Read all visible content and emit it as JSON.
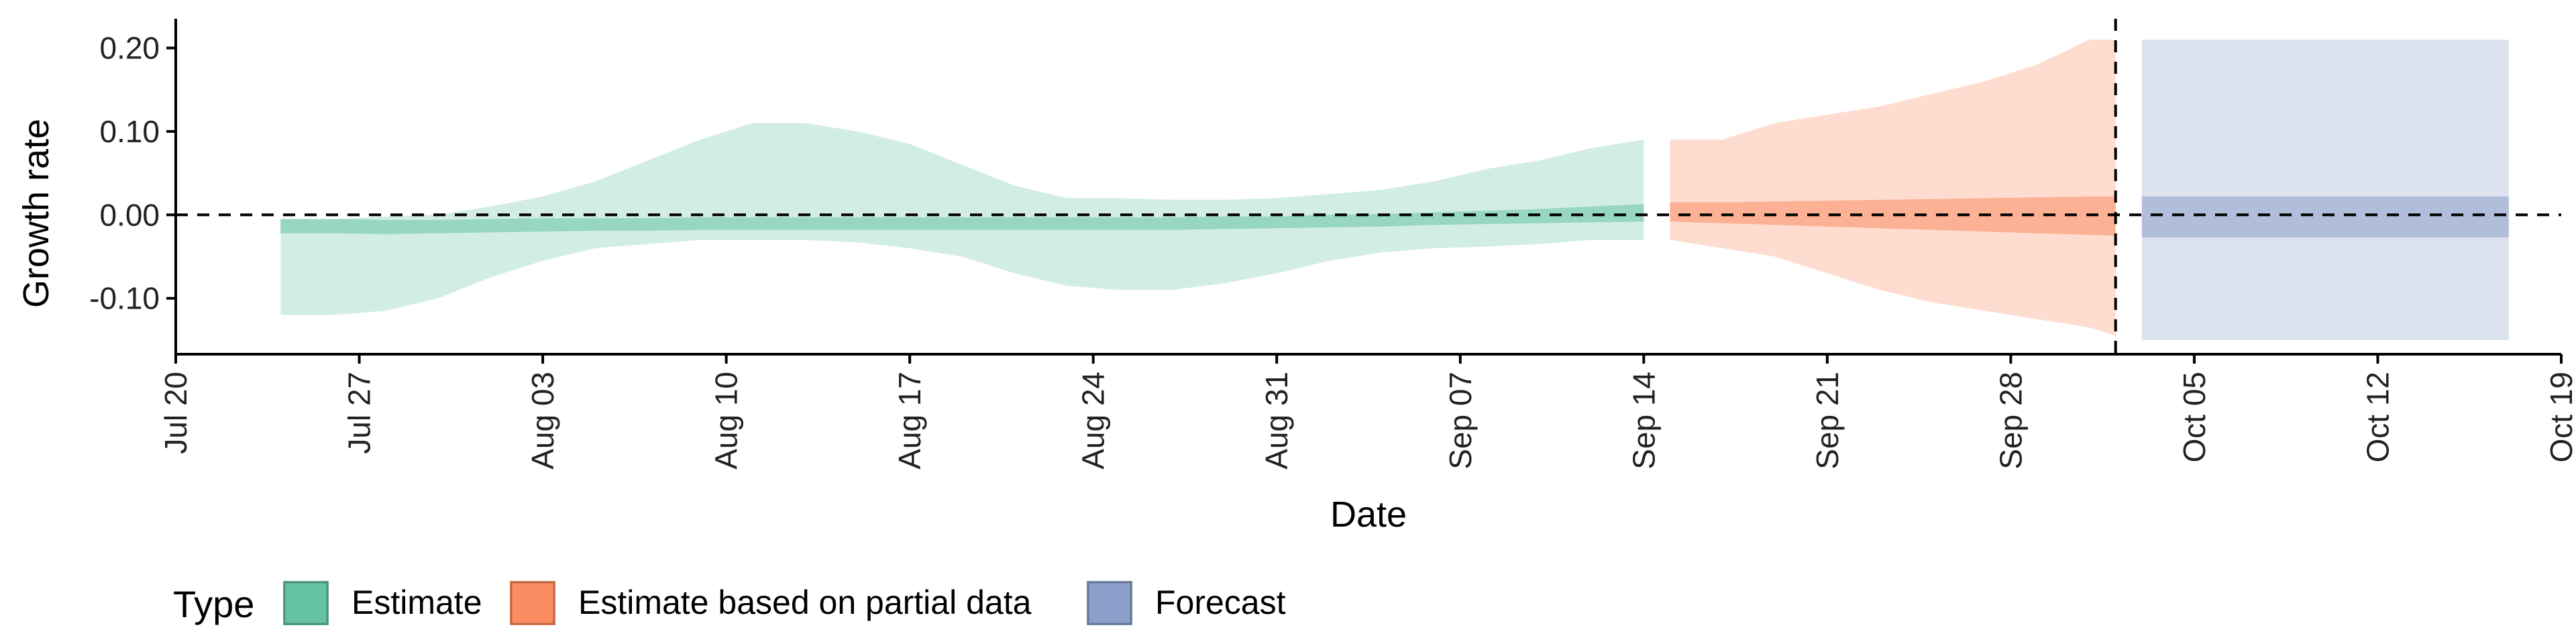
{
  "chart_data": {
    "type": "area",
    "xlabel": "Date",
    "ylabel": "Growth rate",
    "x_tick_labels": [
      "Jul 20",
      "Jul 27",
      "Aug 03",
      "Aug 10",
      "Aug 17",
      "Aug 24",
      "Aug 31",
      "Sep 07",
      "Sep 14",
      "Sep 21",
      "Sep 28",
      "Oct 05",
      "Oct 12",
      "Oct 19"
    ],
    "x_ticks": [
      "2020-07-20",
      "2020-07-27",
      "2020-08-03",
      "2020-08-10",
      "2020-08-17",
      "2020-08-24",
      "2020-08-31",
      "2020-09-07",
      "2020-09-14",
      "2020-09-21",
      "2020-09-28",
      "2020-10-05",
      "2020-10-12",
      "2020-10-19"
    ],
    "xlim": [
      "2020-07-20",
      "2020-10-19"
    ],
    "y_ticks": [
      -0.1,
      0.0,
      0.1,
      0.2
    ],
    "y_tick_labels": [
      "-0.10",
      "0.00",
      "0.10",
      "0.20"
    ],
    "ylim": [
      -0.167,
      0.235
    ],
    "hline": 0.0,
    "vline": "2020-10-02",
    "grid": false,
    "legend": {
      "title": "Type",
      "placement": "bottom-left"
    },
    "colors": {
      "Estimate": "#66c2a5",
      "Estimate based on partial data": "#fc8d62",
      "Forecast": "#8da0cb"
    },
    "series": [
      {
        "name": "Estimate",
        "color": "#66c2a5",
        "x": [
          "2020-07-24",
          "2020-07-26",
          "2020-07-28",
          "2020-07-30",
          "2020-08-01",
          "2020-08-03",
          "2020-08-05",
          "2020-08-07",
          "2020-08-09",
          "2020-08-11",
          "2020-08-13",
          "2020-08-15",
          "2020-08-17",
          "2020-08-19",
          "2020-08-21",
          "2020-08-23",
          "2020-08-25",
          "2020-08-27",
          "2020-08-29",
          "2020-08-31",
          "2020-09-02",
          "2020-09-04",
          "2020-09-06",
          "2020-09-08",
          "2020-09-10",
          "2020-09-12",
          "2020-09-14"
        ],
        "upper90": [
          -0.005,
          -0.005,
          -0.002,
          0.0,
          0.01,
          0.022,
          0.04,
          0.065,
          0.09,
          0.11,
          0.11,
          0.1,
          0.085,
          0.06,
          0.035,
          0.02,
          0.02,
          0.018,
          0.018,
          0.02,
          0.025,
          0.03,
          0.04,
          0.055,
          0.065,
          0.08,
          0.09
        ],
        "lower90": [
          -0.12,
          -0.12,
          -0.115,
          -0.1,
          -0.075,
          -0.055,
          -0.04,
          -0.035,
          -0.03,
          -0.03,
          -0.03,
          -0.033,
          -0.04,
          -0.05,
          -0.07,
          -0.085,
          -0.09,
          -0.09,
          -0.082,
          -0.07,
          -0.055,
          -0.045,
          -0.04,
          -0.038,
          -0.035,
          -0.03,
          -0.03
        ],
        "upper50": [
          -0.005,
          -0.005,
          -0.006,
          -0.006,
          -0.005,
          -0.004,
          -0.004,
          -0.004,
          -0.003,
          -0.003,
          -0.003,
          -0.003,
          -0.003,
          -0.003,
          -0.003,
          -0.003,
          -0.003,
          -0.003,
          -0.002,
          -0.002,
          0.0,
          0.001,
          0.003,
          0.005,
          0.007,
          0.01,
          0.013
        ],
        "lower50": [
          -0.022,
          -0.022,
          -0.023,
          -0.022,
          -0.021,
          -0.02,
          -0.019,
          -0.019,
          -0.018,
          -0.018,
          -0.018,
          -0.018,
          -0.018,
          -0.018,
          -0.018,
          -0.018,
          -0.018,
          -0.018,
          -0.017,
          -0.016,
          -0.015,
          -0.014,
          -0.012,
          -0.011,
          -0.01,
          -0.009,
          -0.008
        ]
      },
      {
        "name": "Estimate based on partial data",
        "color": "#fc8d62",
        "x": [
          "2020-09-15",
          "2020-09-17",
          "2020-09-19",
          "2020-09-21",
          "2020-09-23",
          "2020-09-25",
          "2020-09-27",
          "2020-09-29",
          "2020-10-01",
          "2020-10-02"
        ],
        "upper90": [
          0.09,
          0.09,
          0.11,
          0.12,
          0.13,
          0.145,
          0.16,
          0.18,
          0.21,
          0.21
        ],
        "lower90": [
          -0.03,
          -0.04,
          -0.05,
          -0.07,
          -0.09,
          -0.105,
          -0.115,
          -0.125,
          -0.135,
          -0.145
        ],
        "upper50": [
          0.015,
          0.015,
          0.016,
          0.017,
          0.018,
          0.019,
          0.02,
          0.021,
          0.022,
          0.022
        ],
        "lower50": [
          -0.008,
          -0.01,
          -0.012,
          -0.014,
          -0.016,
          -0.018,
          -0.02,
          -0.022,
          -0.024,
          -0.025
        ]
      },
      {
        "name": "Forecast",
        "color": "#8da0cb",
        "x": [
          "2020-10-03",
          "2020-10-17"
        ],
        "upper90": [
          0.21,
          0.21
        ],
        "lower90": [
          -0.15,
          -0.15
        ],
        "upper50": [
          0.022,
          0.022
        ],
        "lower50": [
          -0.027,
          -0.027
        ]
      }
    ]
  }
}
